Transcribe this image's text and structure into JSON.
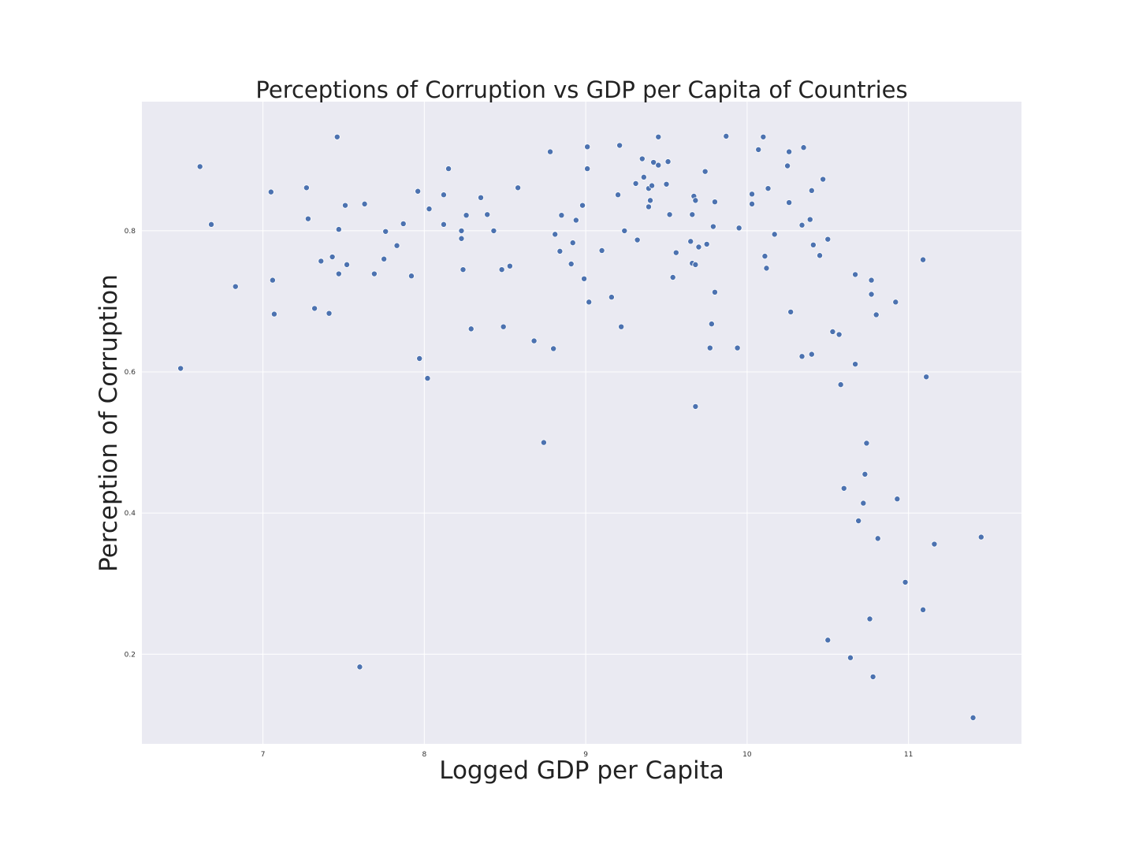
{
  "colors": {
    "plot_background": "#eaeaf2",
    "grid": "#ffffff",
    "point_fill": "#4c72b0",
    "point_stroke": "#ffffff",
    "text": "#222222"
  },
  "chart_data": {
    "type": "scatter",
    "title": "Perceptions of Corruption vs GDP per Capita of Countries",
    "xlabel": "Logged GDP per Capita",
    "ylabel": "Perception of Corruption",
    "xlim": [
      6.25,
      11.7
    ],
    "ylim": [
      0.073,
      0.983
    ],
    "xticks": [
      7,
      8,
      9,
      10,
      11
    ],
    "yticks": [
      0.2,
      0.4,
      0.6,
      0.8
    ],
    "xtick_labels": [
      "7",
      "8",
      "9",
      "10",
      "11"
    ],
    "ytick_labels": [
      "0.2",
      "0.4",
      "0.6",
      "0.8"
    ],
    "grid": true,
    "legend": false,
    "points": [
      [
        6.49,
        0.605
      ],
      [
        6.61,
        0.891
      ],
      [
        6.68,
        0.809
      ],
      [
        6.83,
        0.721
      ],
      [
        7.05,
        0.855
      ],
      [
        7.06,
        0.73
      ],
      [
        7.07,
        0.682
      ],
      [
        7.27,
        0.861
      ],
      [
        7.28,
        0.817
      ],
      [
        7.32,
        0.69
      ],
      [
        7.36,
        0.757
      ],
      [
        7.41,
        0.683
      ],
      [
        7.43,
        0.763
      ],
      [
        7.46,
        0.933
      ],
      [
        7.47,
        0.802
      ],
      [
        7.47,
        0.739
      ],
      [
        7.51,
        0.836
      ],
      [
        7.52,
        0.752
      ],
      [
        7.6,
        0.182
      ],
      [
        7.63,
        0.838
      ],
      [
        7.69,
        0.739
      ],
      [
        7.75,
        0.76
      ],
      [
        7.76,
        0.799
      ],
      [
        7.83,
        0.779
      ],
      [
        7.87,
        0.81
      ],
      [
        7.92,
        0.736
      ],
      [
        7.96,
        0.856
      ],
      [
        7.97,
        0.619
      ],
      [
        8.02,
        0.591
      ],
      [
        8.03,
        0.831
      ],
      [
        8.12,
        0.851
      ],
      [
        8.12,
        0.809
      ],
      [
        8.15,
        0.888
      ],
      [
        8.23,
        0.8
      ],
      [
        8.23,
        0.789
      ],
      [
        8.24,
        0.745
      ],
      [
        8.26,
        0.822
      ],
      [
        8.29,
        0.661
      ],
      [
        8.35,
        0.847
      ],
      [
        8.39,
        0.823
      ],
      [
        8.43,
        0.8
      ],
      [
        8.48,
        0.745
      ],
      [
        8.49,
        0.664
      ],
      [
        8.53,
        0.75
      ],
      [
        8.58,
        0.861
      ],
      [
        8.68,
        0.644
      ],
      [
        8.74,
        0.5
      ],
      [
        8.78,
        0.912
      ],
      [
        8.8,
        0.633
      ],
      [
        8.81,
        0.795
      ],
      [
        8.84,
        0.771
      ],
      [
        8.85,
        0.822
      ],
      [
        8.91,
        0.753
      ],
      [
        8.92,
        0.783
      ],
      [
        8.94,
        0.815
      ],
      [
        8.98,
        0.836
      ],
      [
        8.99,
        0.732
      ],
      [
        9.01,
        0.919
      ],
      [
        9.01,
        0.888
      ],
      [
        9.02,
        0.699
      ],
      [
        9.1,
        0.772
      ],
      [
        9.16,
        0.706
      ],
      [
        9.2,
        0.851
      ],
      [
        9.21,
        0.921
      ],
      [
        9.22,
        0.664
      ],
      [
        9.24,
        0.8
      ],
      [
        9.31,
        0.867
      ],
      [
        9.32,
        0.787
      ],
      [
        9.35,
        0.902
      ],
      [
        9.36,
        0.876
      ],
      [
        9.39,
        0.86
      ],
      [
        9.39,
        0.834
      ],
      [
        9.4,
        0.843
      ],
      [
        9.41,
        0.864
      ],
      [
        9.42,
        0.897
      ],
      [
        9.45,
        0.893
      ],
      [
        9.45,
        0.933
      ],
      [
        9.5,
        0.866
      ],
      [
        9.51,
        0.898
      ],
      [
        9.52,
        0.823
      ],
      [
        9.54,
        0.734
      ],
      [
        9.56,
        0.769
      ],
      [
        9.65,
        0.785
      ],
      [
        9.66,
        0.823
      ],
      [
        9.66,
        0.754
      ],
      [
        9.67,
        0.849
      ],
      [
        9.68,
        0.843
      ],
      [
        9.68,
        0.752
      ],
      [
        9.68,
        0.551
      ],
      [
        9.7,
        0.777
      ],
      [
        9.74,
        0.884
      ],
      [
        9.75,
        0.781
      ],
      [
        9.77,
        0.634
      ],
      [
        9.78,
        0.668
      ],
      [
        9.8,
        0.841
      ],
      [
        9.8,
        0.713
      ],
      [
        9.79,
        0.806
      ],
      [
        9.87,
        0.934
      ],
      [
        9.94,
        0.634
      ],
      [
        9.95,
        0.804
      ],
      [
        10.03,
        0.852
      ],
      [
        10.03,
        0.838
      ],
      [
        10.07,
        0.915
      ],
      [
        10.1,
        0.933
      ],
      [
        10.11,
        0.764
      ],
      [
        10.12,
        0.747
      ],
      [
        10.13,
        0.86
      ],
      [
        10.17,
        0.795
      ],
      [
        10.25,
        0.892
      ],
      [
        10.26,
        0.912
      ],
      [
        10.26,
        0.84
      ],
      [
        10.27,
        0.685
      ],
      [
        10.35,
        0.918
      ],
      [
        10.34,
        0.808
      ],
      [
        10.34,
        0.622
      ],
      [
        10.39,
        0.816
      ],
      [
        10.4,
        0.857
      ],
      [
        10.4,
        0.625
      ],
      [
        10.41,
        0.78
      ],
      [
        10.45,
        0.765
      ],
      [
        10.47,
        0.873
      ],
      [
        10.5,
        0.788
      ],
      [
        10.5,
        0.22
      ],
      [
        10.53,
        0.657
      ],
      [
        10.57,
        0.653
      ],
      [
        10.58,
        0.582
      ],
      [
        10.6,
        0.435
      ],
      [
        10.64,
        0.195
      ],
      [
        10.67,
        0.738
      ],
      [
        10.67,
        0.611
      ],
      [
        10.69,
        0.389
      ],
      [
        10.72,
        0.414
      ],
      [
        10.73,
        0.455
      ],
      [
        10.74,
        0.499
      ],
      [
        10.76,
        0.25
      ],
      [
        10.77,
        0.73
      ],
      [
        10.77,
        0.71
      ],
      [
        10.78,
        0.168
      ],
      [
        10.8,
        0.681
      ],
      [
        10.81,
        0.364
      ],
      [
        10.92,
        0.699
      ],
      [
        10.93,
        0.42
      ],
      [
        10.98,
        0.302
      ],
      [
        11.09,
        0.759
      ],
      [
        11.09,
        0.263
      ],
      [
        11.11,
        0.593
      ],
      [
        11.16,
        0.356
      ],
      [
        11.4,
        0.11
      ],
      [
        11.45,
        0.366
      ]
    ]
  }
}
